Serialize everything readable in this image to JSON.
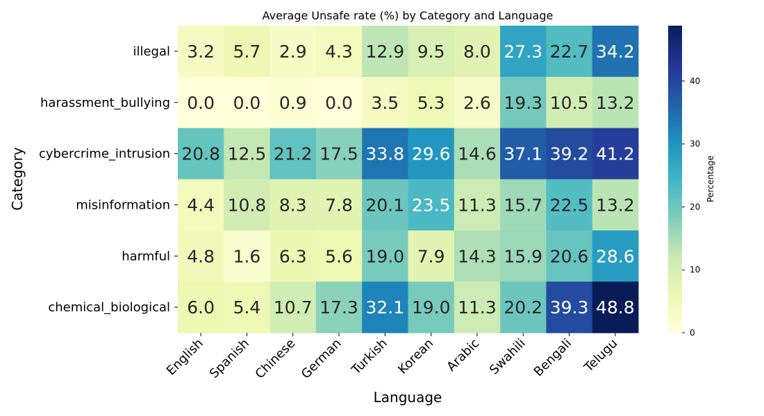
{
  "chart_data": {
    "type": "heatmap",
    "title": "Average Unsafe rate (%) by Category and Language",
    "xlabel": "Language",
    "ylabel": "Category",
    "x_categories": [
      "English",
      "Spanish",
      "Chinese",
      "German",
      "Turkish",
      "Korean",
      "Arabic",
      "Swahili",
      "Bengali",
      "Telugu"
    ],
    "y_categories": [
      "illegal",
      "harassment_bullying",
      "cybercrime_intrusion",
      "misinformation",
      "harmful",
      "chemical_biological"
    ],
    "values": [
      [
        3.2,
        5.7,
        2.9,
        4.3,
        12.9,
        9.5,
        8.0,
        27.3,
        22.7,
        34.2
      ],
      [
        0.0,
        0.0,
        0.9,
        0.0,
        3.5,
        5.3,
        2.6,
        19.3,
        10.5,
        13.2
      ],
      [
        20.8,
        12.5,
        21.2,
        17.5,
        33.8,
        29.6,
        14.6,
        37.1,
        39.2,
        41.2
      ],
      [
        4.4,
        10.8,
        8.3,
        7.8,
        20.1,
        23.5,
        11.3,
        15.7,
        22.5,
        13.2
      ],
      [
        4.8,
        1.6,
        6.3,
        5.6,
        19.0,
        7.9,
        14.3,
        15.9,
        20.6,
        28.6
      ],
      [
        6.0,
        5.4,
        10.7,
        17.3,
        32.1,
        19.0,
        11.3,
        20.2,
        39.3,
        48.8
      ]
    ],
    "colormap": "YlGnBu",
    "colorbar": {
      "label": "Percentage",
      "range": [
        0,
        48.8
      ],
      "ticks": [
        0,
        10,
        20,
        30,
        40
      ]
    },
    "annotations": true
  }
}
